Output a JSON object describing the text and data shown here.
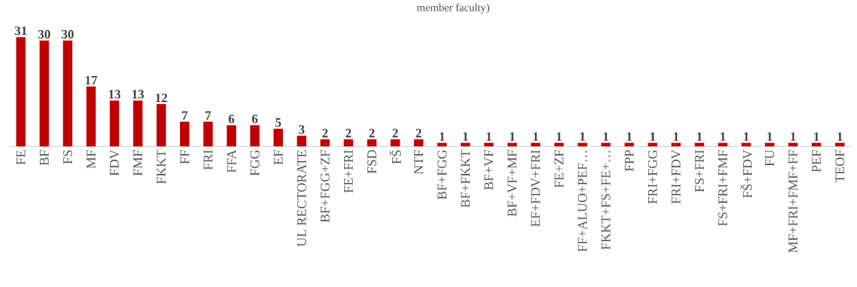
{
  "chart_data": {
    "type": "bar",
    "title": "member faculty)",
    "categories": [
      "FE",
      "BF",
      "FS",
      "MF",
      "FDV",
      "FMF",
      "FKKT",
      "FF",
      "FRI",
      "FFA",
      "FGG",
      "EF",
      "UL RECTORATE",
      "BF+FGG+ZF",
      "FE+FRI",
      "FSD",
      "FŠ",
      "NTF",
      "BF+FGG",
      "BF+FKKT",
      "BF+VF",
      "BF+VF+MF",
      "EF+FDV+FRI",
      "FE+ZF",
      "FF+ALUO+PEF…",
      "FKKT+FS+FE+…",
      "FPP",
      "FRI+FGG",
      "FRI+FDV",
      "FS+FRI",
      "FS+FRI+FMF",
      "FŠ+FDV",
      "FU",
      "MF+FRI+FMF+FF",
      "PEF",
      "TEOF"
    ],
    "values": [
      31,
      30,
      30,
      17,
      13,
      13,
      12,
      7,
      7,
      6,
      6,
      5,
      3,
      2,
      2,
      2,
      2,
      2,
      1,
      1,
      1,
      1,
      1,
      1,
      1,
      1,
      1,
      1,
      1,
      1,
      1,
      1,
      1,
      1,
      1,
      1
    ],
    "color": "#c00000",
    "data_labels": true,
    "tick_labels": "x"
  }
}
